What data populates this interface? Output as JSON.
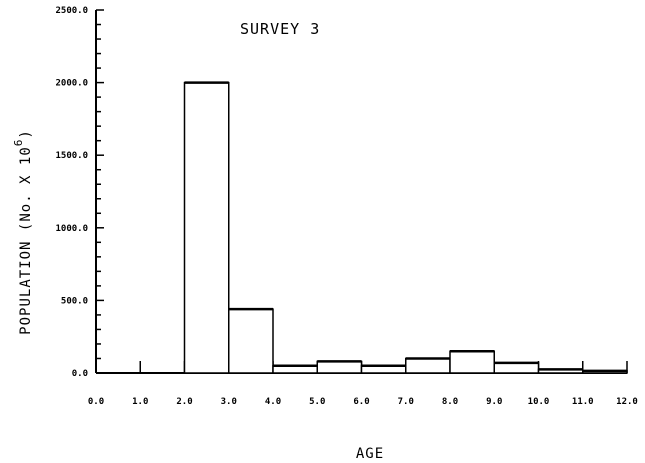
{
  "chart_data": {
    "type": "bar",
    "title": "SURVEY 3",
    "xlabel": "AGE",
    "ylabel": "POPULATION (No. X 10",
    "ylabel_exponent": "6",
    "ylabel_close": ")",
    "xlim": [
      0,
      12
    ],
    "ylim": [
      0,
      2500
    ],
    "x_tick_labels": [
      "0.0",
      "1.0",
      "2.0",
      "3.0",
      "4.0",
      "5.0",
      "6.0",
      "7.0",
      "8.0",
      "9.0",
      "10.0",
      "11.0",
      "12.0"
    ],
    "y_tick_labels": [
      "0.0",
      "500.0",
      "1000.0",
      "1500.0",
      "2000.0",
      "2500.0"
    ],
    "bins": [
      {
        "age_start": 2,
        "age_end": 3,
        "value": 2000
      },
      {
        "age_start": 3,
        "age_end": 4,
        "value": 440
      },
      {
        "age_start": 4,
        "age_end": 5,
        "value": 50
      },
      {
        "age_start": 5,
        "age_end": 6,
        "value": 80
      },
      {
        "age_start": 6,
        "age_end": 7,
        "value": 50
      },
      {
        "age_start": 7,
        "age_end": 8,
        "value": 100
      },
      {
        "age_start": 8,
        "age_end": 9,
        "value": 150
      },
      {
        "age_start": 9,
        "age_end": 10,
        "value": 70
      },
      {
        "age_start": 10,
        "age_end": 11,
        "value": 25
      },
      {
        "age_start": 11,
        "age_end": 12,
        "value": 15
      }
    ],
    "grid": false,
    "legend": "none"
  }
}
